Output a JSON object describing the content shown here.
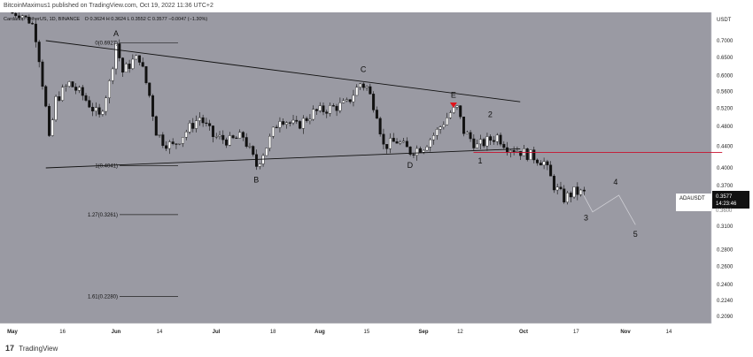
{
  "header": {
    "attribution": "BitcoinMaximus1 published on TradingView.com, Oct 19, 2022 11:36 UTC+2"
  },
  "footer": {
    "brand": "TradingView",
    "logo_glyph": "17"
  },
  "legend": {
    "symbol": "Cardano / TetherUS, 1D, BINANCE",
    "ohlc": "O 0.3624  H 0.3624  L 0.3552  C 0.3577  −0.0047 (−1.30%)"
  },
  "price_panel": {
    "currency": "USDT",
    "ticker": "ADAUSDT",
    "last_price": "0.3577",
    "countdown": "14:23:46",
    "partial_label": "0.3600"
  },
  "colors": {
    "background": "#9a9aa3",
    "up_candle": "#ffffff",
    "down_candle": "#111111",
    "trendline": "#111111",
    "support_line": "#c8102e",
    "marker": "#e0131b",
    "fib_line": "#222222",
    "wave_path": "#d0d0d6"
  },
  "chart_data": {
    "type": "candlestick",
    "title": "Cardano / TetherUS, 1D, BINANCE",
    "xlabel": "",
    "ylabel": "USDT",
    "y_scale": "log",
    "ylim": [
      0.2,
      0.84
    ],
    "xlim": [
      "2022-05-01",
      "2022-12-01"
    ],
    "y_ticks": [
      "0.7000",
      "0.6500",
      "0.6000",
      "0.5600",
      "0.5200",
      "0.4800",
      "0.4400",
      "0.4000",
      "0.3700",
      "0.3400",
      "0.3100",
      "0.2800",
      "0.2600",
      "0.2400",
      "0.2240",
      "0.2090"
    ],
    "x_ticks": [
      {
        "label": "May",
        "date": "2022-05-01"
      },
      {
        "label": "16",
        "date": "2022-05-16"
      },
      {
        "label": "Jun",
        "date": "2022-06-01"
      },
      {
        "label": "14",
        "date": "2022-06-14"
      },
      {
        "label": "Jul",
        "date": "2022-07-01"
      },
      {
        "label": "18",
        "date": "2022-07-18"
      },
      {
        "label": "Aug",
        "date": "2022-08-01"
      },
      {
        "label": "15",
        "date": "2022-08-15"
      },
      {
        "label": "Sep",
        "date": "2022-09-01"
      },
      {
        "label": "12",
        "date": "2022-09-12"
      },
      {
        "label": "Oct",
        "date": "2022-10-01"
      },
      {
        "label": "17",
        "date": "2022-10-17"
      },
      {
        "label": "Nov",
        "date": "2022-11-01"
      },
      {
        "label": "14",
        "date": "2022-11-14"
      }
    ],
    "close_series": [
      {
        "date": "2022-05-01",
        "close": 0.84
      },
      {
        "date": "2022-05-04",
        "close": 0.83
      },
      {
        "date": "2022-05-07",
        "close": 0.78
      },
      {
        "date": "2022-05-09",
        "close": 0.65
      },
      {
        "date": "2022-05-11",
        "close": 0.52
      },
      {
        "date": "2022-05-12",
        "close": 0.45
      },
      {
        "date": "2022-05-14",
        "close": 0.54
      },
      {
        "date": "2022-05-18",
        "close": 0.58
      },
      {
        "date": "2022-05-22",
        "close": 0.55
      },
      {
        "date": "2022-05-27",
        "close": 0.5
      },
      {
        "date": "2022-05-30",
        "close": 0.58
      },
      {
        "date": "2022-06-01",
        "close": 0.6927
      },
      {
        "date": "2022-06-03",
        "close": 0.61
      },
      {
        "date": "2022-06-06",
        "close": 0.64
      },
      {
        "date": "2022-06-08",
        "close": 0.65
      },
      {
        "date": "2022-06-11",
        "close": 0.55
      },
      {
        "date": "2022-06-13",
        "close": 0.47
      },
      {
        "date": "2022-06-15",
        "close": 0.45
      },
      {
        "date": "2022-06-18",
        "close": 0.44
      },
      {
        "date": "2022-06-22",
        "close": 0.47
      },
      {
        "date": "2022-06-26",
        "close": 0.5
      },
      {
        "date": "2022-06-30",
        "close": 0.46
      },
      {
        "date": "2022-07-05",
        "close": 0.45
      },
      {
        "date": "2022-07-09",
        "close": 0.46
      },
      {
        "date": "2022-07-13",
        "close": 0.4041
      },
      {
        "date": "2022-07-16",
        "close": 0.44
      },
      {
        "date": "2022-07-20",
        "close": 0.5
      },
      {
        "date": "2022-07-25",
        "close": 0.48
      },
      {
        "date": "2022-07-30",
        "close": 0.51
      },
      {
        "date": "2022-08-04",
        "close": 0.52
      },
      {
        "date": "2022-08-09",
        "close": 0.53
      },
      {
        "date": "2022-08-13",
        "close": 0.58
      },
      {
        "date": "2022-08-15",
        "close": 0.57
      },
      {
        "date": "2022-08-18",
        "close": 0.51
      },
      {
        "date": "2022-08-20",
        "close": 0.44
      },
      {
        "date": "2022-08-24",
        "close": 0.45
      },
      {
        "date": "2022-08-28",
        "close": 0.43
      },
      {
        "date": "2022-09-01",
        "close": 0.44
      },
      {
        "date": "2022-09-05",
        "close": 0.47
      },
      {
        "date": "2022-09-09",
        "close": 0.51
      },
      {
        "date": "2022-09-11",
        "close": 0.52
      },
      {
        "date": "2022-09-13",
        "close": 0.47
      },
      {
        "date": "2022-09-17",
        "close": 0.44
      },
      {
        "date": "2022-09-20",
        "close": 0.45
      },
      {
        "date": "2022-09-23",
        "close": 0.46
      },
      {
        "date": "2022-09-26",
        "close": 0.44
      },
      {
        "date": "2022-09-30",
        "close": 0.43
      },
      {
        "date": "2022-10-04",
        "close": 0.42
      },
      {
        "date": "2022-10-07",
        "close": 0.41
      },
      {
        "date": "2022-10-10",
        "close": 0.37
      },
      {
        "date": "2022-10-13",
        "close": 0.35
      },
      {
        "date": "2022-10-16",
        "close": 0.36
      },
      {
        "date": "2022-10-19",
        "close": 0.3577
      }
    ],
    "trendlines": [
      {
        "name": "upper",
        "from": {
          "date": "2022-05-11",
          "price": 0.7
        },
        "to": {
          "date": "2022-09-30",
          "price": 0.535
        }
      },
      {
        "name": "lower",
        "from": {
          "date": "2022-05-11",
          "price": 0.4
        },
        "to": {
          "date": "2022-09-30",
          "price": 0.435
        }
      }
    ],
    "support_line": {
      "price": 0.428,
      "from": "2022-09-16",
      "to": "2022-11-30"
    },
    "fib_levels": [
      {
        "label": "0(0.6927)",
        "ratio": "0",
        "price": 0.6927
      },
      {
        "label": "1(0.4041)",
        "ratio": "1",
        "price": 0.4041
      },
      {
        "label": "1.27(0.3261)",
        "ratio": "1.27",
        "price": 0.3261
      },
      {
        "label": "1.61(0.2280)",
        "ratio": "1.61",
        "price": 0.228
      }
    ],
    "wave_labels": [
      {
        "text": "A",
        "date": "2022-06-01",
        "price": 0.72
      },
      {
        "text": "B",
        "date": "2022-07-13",
        "price": 0.375
      },
      {
        "text": "C",
        "date": "2022-08-14",
        "price": 0.61
      },
      {
        "text": "D",
        "date": "2022-08-28",
        "price": 0.4
      },
      {
        "text": "E",
        "date": "2022-09-10",
        "price": 0.545
      },
      {
        "text": "1",
        "date": "2022-09-18",
        "price": 0.408
      },
      {
        "text": "2",
        "date": "2022-09-21",
        "price": 0.5
      },
      {
        "text": "3",
        "date": "2022-10-20",
        "price": 0.318
      },
      {
        "text": "4",
        "date": "2022-10-29",
        "price": 0.372
      },
      {
        "text": "5",
        "date": "2022-11-04",
        "price": 0.296
      }
    ],
    "projection_path": [
      {
        "date": "2022-10-19",
        "price": 0.3577
      },
      {
        "date": "2022-10-22",
        "price": 0.33
      },
      {
        "date": "2022-10-30",
        "price": 0.355
      },
      {
        "date": "2022-11-04",
        "price": 0.312
      }
    ],
    "marker": {
      "type": "down-triangle",
      "date": "2022-09-10",
      "price": 0.525
    }
  }
}
